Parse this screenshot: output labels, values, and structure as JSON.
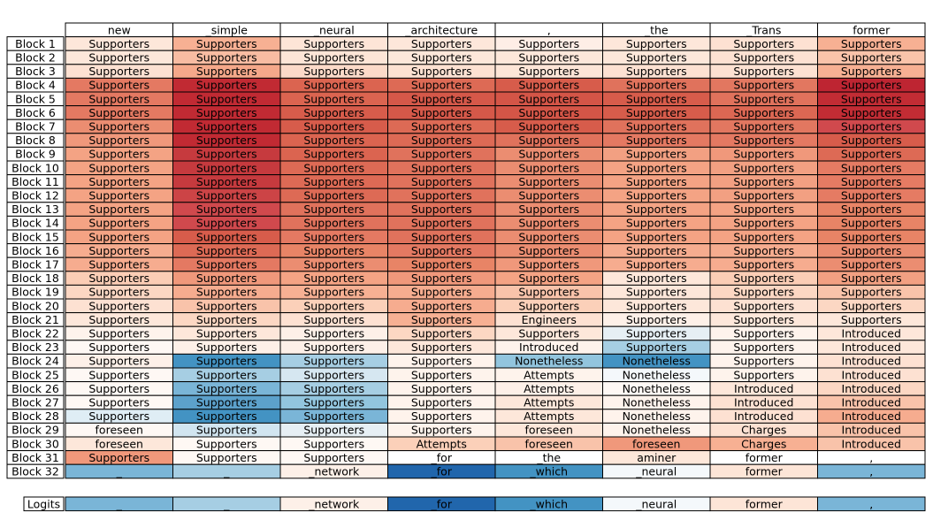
{
  "chart_data": {
    "type": "heatmap",
    "columns": [
      "new",
      "_simple",
      "_neural",
      "_architecture",
      ",",
      "_the",
      "_Trans",
      "former"
    ],
    "rows": [
      {
        "label": "Block 1",
        "tokens": [
          "Supporters",
          "Supporters",
          "Supporters",
          "Supporters",
          "Supporters",
          "Supporters",
          "Supporters",
          "Supporters"
        ],
        "colors": [
          "#fde7da",
          "#f7b093",
          "#fde5d7",
          "#fde7da",
          "#feeee6",
          "#fde7da",
          "#fde1d2",
          "#f7b093"
        ]
      },
      {
        "label": "Block 2",
        "tokens": [
          "Supporters",
          "Supporters",
          "Supporters",
          "Supporters",
          "Supporters",
          "Supporters",
          "Supporters",
          "Supporters"
        ],
        "colors": [
          "#fde7da",
          "#f8bca2",
          "#fde5d7",
          "#fde7da",
          "#fde7da",
          "#fde7da",
          "#fde1d2",
          "#f9c3aa"
        ]
      },
      {
        "label": "Block 3",
        "tokens": [
          "Supporters",
          "Supporters",
          "Supporters",
          "Supporters",
          "Supporters",
          "Supporters",
          "Supporters",
          "Supporters"
        ],
        "colors": [
          "#fde1d2",
          "#f5a88a",
          "#fcdac9",
          "#fde1d2",
          "#fde5d7",
          "#fde1d2",
          "#fde1d2",
          "#f7b093"
        ]
      },
      {
        "label": "Block 4",
        "tokens": [
          "Supporters",
          "Supporters",
          "Supporters",
          "Supporters",
          "Supporters",
          "Supporters",
          "Supporters",
          "Supporters"
        ],
        "colors": [
          "#e47962",
          "#c12a33",
          "#db6450",
          "#dd6a55",
          "#d75c4b",
          "#e0725c",
          "#e27760",
          "#be2532"
        ]
      },
      {
        "label": "Block 5",
        "tokens": [
          "Supporters",
          "Supporters",
          "Supporters",
          "Supporters",
          "Supporters",
          "Supporters",
          "Supporters",
          "Supporters"
        ],
        "colors": [
          "#e47962",
          "#c12a33",
          "#db6450",
          "#d55849",
          "#d45547",
          "#d75c4b",
          "#e0725c",
          "#c22c34"
        ]
      },
      {
        "label": "Block 6",
        "tokens": [
          "Supporters",
          "Supporters",
          "Supporters",
          "Supporters",
          "Supporters",
          "Supporters",
          "Supporters",
          "Supporters"
        ],
        "colors": [
          "#e47962",
          "#c12a33",
          "#d75c4b",
          "#d55849",
          "#d45547",
          "#d75c4b",
          "#dc6753",
          "#c22c34"
        ]
      },
      {
        "label": "Block 7",
        "tokens": [
          "Supporters",
          "Supporters",
          "Supporters",
          "Supporters",
          "Supporters",
          "Supporters",
          "Supporters",
          "Supporters"
        ],
        "colors": [
          "#eb8d71",
          "#c12a33",
          "#d75c4b",
          "#dd6a55",
          "#d75c4b",
          "#e0725c",
          "#e27760",
          "#d0494d"
        ]
      },
      {
        "label": "Block 8",
        "tokens": [
          "Supporters",
          "Supporters",
          "Supporters",
          "Supporters",
          "Supporters",
          "Supporters",
          "Supporters",
          "Supporters"
        ],
        "colors": [
          "#f0987b",
          "#c12a33",
          "#db6450",
          "#dd6a55",
          "#e0725c",
          "#e47962",
          "#e47962",
          "#d75c4b"
        ]
      },
      {
        "label": "Block 9",
        "tokens": [
          "Supporters",
          "Supporters",
          "Supporters",
          "Supporters",
          "Supporters",
          "Supporters",
          "Supporters",
          "Supporters"
        ],
        "colors": [
          "#f4a384",
          "#c63a3e",
          "#db6450",
          "#e0725c",
          "#eb8d71",
          "#f2a082",
          "#f0987b",
          "#dd6a55"
        ]
      },
      {
        "label": "Block 10",
        "tokens": [
          "Supporters",
          "Supporters",
          "Supporters",
          "Supporters",
          "Supporters",
          "Supporters",
          "Supporters",
          "Supporters"
        ],
        "colors": [
          "#f4a384",
          "#c63a3e",
          "#dd6a55",
          "#e0725c",
          "#eb8d71",
          "#f4a384",
          "#f2a082",
          "#e57b63"
        ]
      },
      {
        "label": "Block 11",
        "tokens": [
          "Supporters",
          "Supporters",
          "Supporters",
          "Supporters",
          "Supporters",
          "Supporters",
          "Supporters",
          "Supporters"
        ],
        "colors": [
          "#f4a384",
          "#c63a3e",
          "#dd6a55",
          "#e0725c",
          "#eb8d71",
          "#f4a384",
          "#f2a082",
          "#e57b63"
        ]
      },
      {
        "label": "Block 12",
        "tokens": [
          "Supporters",
          "Supporters",
          "Supporters",
          "Supporters",
          "Supporters",
          "Supporters",
          "Supporters",
          "Supporters"
        ],
        "colors": [
          "#f4a384",
          "#cc4446",
          "#dd6a55",
          "#e0725c",
          "#eb8d71",
          "#f4a384",
          "#f2a082",
          "#e57b63"
        ]
      },
      {
        "label": "Block 13",
        "tokens": [
          "Supporters",
          "Supporters",
          "Supporters",
          "Supporters",
          "Supporters",
          "Supporters",
          "Supporters",
          "Supporters"
        ],
        "colors": [
          "#f4a384",
          "#d0494d",
          "#e0725c",
          "#e0725c",
          "#eb8d71",
          "#f4a384",
          "#f4a384",
          "#e88466"
        ]
      },
      {
        "label": "Block 14",
        "tokens": [
          "Supporters",
          "Supporters",
          "Supporters",
          "Supporters",
          "Supporters",
          "Supporters",
          "Supporters",
          "Supporters"
        ],
        "colors": [
          "#f4a384",
          "#d0494d",
          "#e0725c",
          "#e0725c",
          "#eb8d71",
          "#f4a384",
          "#f4a384",
          "#e88466"
        ]
      },
      {
        "label": "Block 15",
        "tokens": [
          "Supporters",
          "Supporters",
          "Supporters",
          "Supporters",
          "Supporters",
          "Supporters",
          "Supporters",
          "Supporters"
        ],
        "colors": [
          "#f4a384",
          "#d75c4b",
          "#e47962",
          "#e0725c",
          "#eb8d71",
          "#f4a384",
          "#f4a384",
          "#e88466"
        ]
      },
      {
        "label": "Block 16",
        "tokens": [
          "Supporters",
          "Supporters",
          "Supporters",
          "Supporters",
          "Supporters",
          "Supporters",
          "Supporters",
          "Supporters"
        ],
        "colors": [
          "#f6ac8f",
          "#dd6a55",
          "#e88466",
          "#e47962",
          "#eb8d71",
          "#f6ac8f",
          "#f6ac8f",
          "#eb8d71"
        ]
      },
      {
        "label": "Block 17",
        "tokens": [
          "Supporters",
          "Supporters",
          "Supporters",
          "Supporters",
          "Supporters",
          "Supporters",
          "Supporters",
          "Supporters"
        ],
        "colors": [
          "#f6ac8f",
          "#e47962",
          "#eb8d71",
          "#e88466",
          "#f0987b",
          "#f6ac8f",
          "#f6ac8f",
          "#eb8d71"
        ]
      },
      {
        "label": "Block 18",
        "tokens": [
          "Supporters",
          "Supporters",
          "Supporters",
          "Supporters",
          "Supporters",
          "Supporters",
          "Supporters",
          "Supporters"
        ],
        "colors": [
          "#fbcdb5",
          "#f0987b",
          "#f4a384",
          "#f0987b",
          "#f4a384",
          "#fde7da",
          "#fbcdb5",
          "#f2a082"
        ]
      },
      {
        "label": "Block 19",
        "tokens": [
          "Supporters",
          "Supporters",
          "Supporters",
          "Supporters",
          "Supporters",
          "Supporters",
          "Supporters",
          "Supporters"
        ],
        "colors": [
          "#fcd7c3",
          "#f6ac8f",
          "#f7b093",
          "#f6ac8f",
          "#f9c3aa",
          "#fde7da",
          "#fcd7c3",
          "#f9c3aa"
        ]
      },
      {
        "label": "Block 20",
        "tokens": [
          "Supporters",
          "Supporters",
          "Supporters",
          "Supporters",
          "Supporters",
          "Supporters",
          "Supporters",
          "Supporters"
        ],
        "colors": [
          "#fde1d2",
          "#f9c3aa",
          "#fbd0b9",
          "#f6ac8f",
          "#fbd0b9",
          "#fde7da",
          "#fde1d2",
          "#fcd7c3"
        ]
      },
      {
        "label": "Block 21",
        "tokens": [
          "Supporters",
          "Supporters",
          "Supporters",
          "Supporters",
          "Engineers",
          "Supporters",
          "Supporters",
          "Supporters"
        ],
        "colors": [
          "#fde7da",
          "#fcd7c3",
          "#fde1d2",
          "#f7b093",
          "#fde1d2",
          "#fdf0e8",
          "#fde7da",
          "#fde7da"
        ]
      },
      {
        "label": "Block 22",
        "tokens": [
          "Supporters",
          "Supporters",
          "Supporters",
          "Supporters",
          "Supporters",
          "Supporters",
          "Supporters",
          "Introduced"
        ],
        "colors": [
          "#fef3ec",
          "#fde7da",
          "#fdf0e8",
          "#fcd7c3",
          "#fde7da",
          "#e6eff4",
          "#fef3ec",
          "#fde7da"
        ]
      },
      {
        "label": "Block 23",
        "tokens": [
          "Supporters",
          "Supporters",
          "Supporters",
          "Supporters",
          "Introduced",
          "Supporters",
          "Supporters",
          "Introduced"
        ],
        "colors": [
          "#fef8f4",
          "#fdf0e8",
          "#fdf0e8",
          "#fde7da",
          "#fef3ec",
          "#a6cee3",
          "#fef3ec",
          "#fde7da"
        ]
      },
      {
        "label": "Block 24",
        "tokens": [
          "Supporters",
          "Supporters",
          "Supporters",
          "Supporters",
          "Nonetheless",
          "Nonetheless",
          "Supporters",
          "Introduced"
        ],
        "colors": [
          "#fdf0e8",
          "#4393c3",
          "#a6cee3",
          "#fef3ec",
          "#92c5de",
          "#4393c3",
          "#fef3ec",
          "#fde1d2"
        ]
      },
      {
        "label": "Block 25",
        "tokens": [
          "Supporters",
          "Supporters",
          "Supporters",
          "Supporters",
          "Attempts",
          "Nonetheless",
          "Supporters",
          "Introduced"
        ],
        "colors": [
          "#fef8f4",
          "#a6cee3",
          "#d6e7f1",
          "#fef3ec",
          "#fef3ec",
          "#f4f8fb",
          "#fef3ec",
          "#fde1d2"
        ]
      },
      {
        "label": "Block 26",
        "tokens": [
          "Supporters",
          "Supporters",
          "Supporters",
          "Supporters",
          "Attempts",
          "Nonetheless",
          "Introduced",
          "Introduced"
        ],
        "colors": [
          "#fef8f4",
          "#7ab5d7",
          "#a6cee3",
          "#fef3ec",
          "#fdf0e8",
          "#fef8f4",
          "#fde7da",
          "#fcd7c3"
        ]
      },
      {
        "label": "Block 27",
        "tokens": [
          "Supporters",
          "Supporters",
          "Supporters",
          "Supporters",
          "Attempts",
          "Nonetheless",
          "Introduced",
          "Introduced"
        ],
        "colors": [
          "#fef8f4",
          "#5ca1cb",
          "#92c5de",
          "#fef3ec",
          "#fde7da",
          "#fef3ec",
          "#fde1d2",
          "#f9c3aa"
        ]
      },
      {
        "label": "Block 28",
        "tokens": [
          "Supporters",
          "Supporters",
          "Supporters",
          "Supporters",
          "Attempts",
          "Nonetheless",
          "Introduced",
          "Introduced"
        ],
        "colors": [
          "#dfedf5",
          "#4393c3",
          "#7ab5d7",
          "#fef3ec",
          "#fde7da",
          "#fef3ec",
          "#fde1d2",
          "#f6ac8f"
        ]
      },
      {
        "label": "Block 29",
        "tokens": [
          "foreseen",
          "Supporters",
          "Supporters",
          "Supporters",
          "foreseen",
          "Nonetheless",
          "Charges",
          "Introduced"
        ],
        "colors": [
          "#fef8f4",
          "#d1e5f0",
          "#e6eff4",
          "#fef3ec",
          "#fde7da",
          "#fef3ec",
          "#fde1d2",
          "#f9c3aa"
        ]
      },
      {
        "label": "Block 30",
        "tokens": [
          "foreseen",
          "Supporters",
          "Supporters",
          "Attempts",
          "foreseen",
          "foreseen",
          "Charges",
          "Introduced"
        ],
        "colors": [
          "#fde7da",
          "#fef8f4",
          "#fef8f4",
          "#fbd0b9",
          "#f9c3aa",
          "#f0987b",
          "#f7b093",
          "#f9c3aa"
        ]
      },
      {
        "label": "Block 31",
        "tokens": [
          "Supporters",
          "Supporters",
          "Supporters",
          "_for",
          "_the",
          "aminer",
          "former",
          ","
        ],
        "colors": [
          "#f0987b",
          "#fef8f4",
          "#fef8f4",
          "#ffffff",
          "#ffffff",
          "#fde7da",
          "#ffffff",
          "#ffffff"
        ]
      },
      {
        "label": "Block 32",
        "tokens": [
          "_",
          "_",
          "_network",
          "_for",
          "_which",
          "_neural",
          "former",
          ","
        ],
        "colors": [
          "#7ab5d7",
          "#a6cee3",
          "#fdf0e8",
          "#2166ac",
          "#4393c3",
          "#f4f8fb",
          "#fde5d7",
          "#7ab5d7"
        ]
      }
    ],
    "logits": {
      "label": "Logits",
      "tokens": [
        "_",
        "_",
        "_network",
        "_for",
        "_which",
        "_neural",
        "former",
        ","
      ],
      "colors": [
        "#7ab5d7",
        "#a6cee3",
        "#fdf0e8",
        "#2166ac",
        "#4393c3",
        "#f4f8fb",
        "#fde5d7",
        "#7ab5d7"
      ]
    },
    "grid": true
  }
}
